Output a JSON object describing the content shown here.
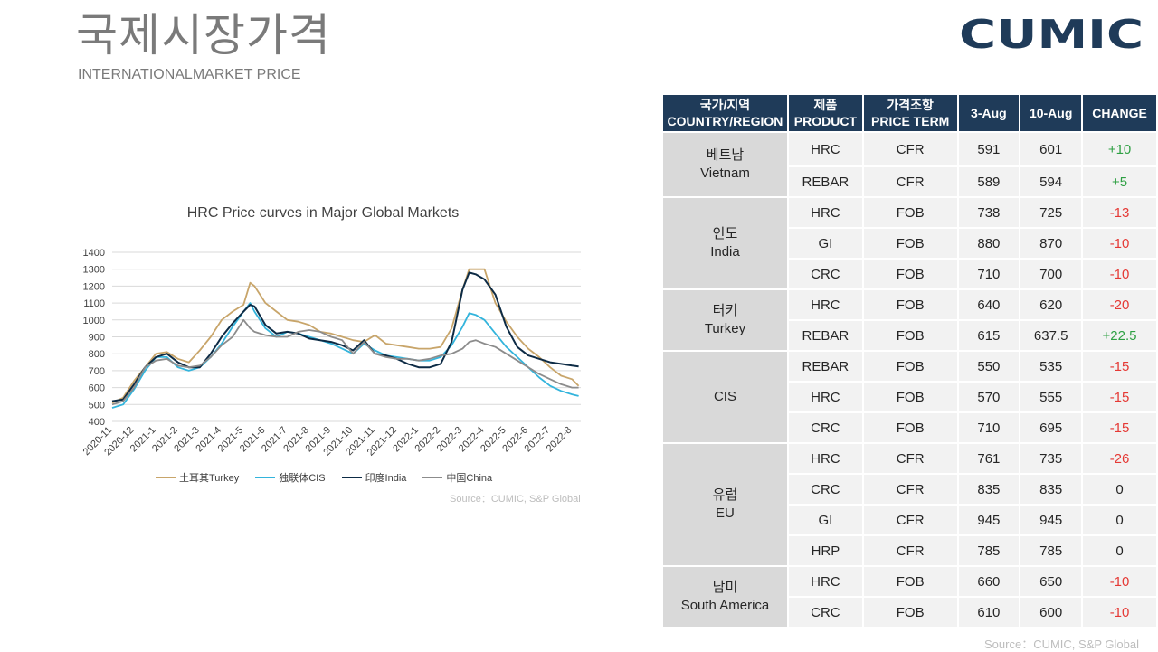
{
  "header": {
    "title_ko": "국제시장가격",
    "title_en": "INTERNATIONALMARKET PRICE",
    "logo_text": "CUMIC",
    "logo_color": "#1f3b59"
  },
  "chart_data": {
    "type": "line",
    "title": "HRC Price curves in Major Global Markets",
    "xlabel": "",
    "ylabel": "",
    "ylim": [
      400,
      1400
    ],
    "yticks": [
      400,
      500,
      600,
      700,
      800,
      900,
      1000,
      1100,
      1200,
      1300,
      1400
    ],
    "grid": true,
    "legend_position": "bottom",
    "categories": [
      "2020-11",
      "2020-12",
      "2021-1",
      "2021-2",
      "2021-3",
      "2021-4",
      "2021-5",
      "2021-6",
      "2021-7",
      "2021-8",
      "2021-9",
      "2021-10",
      "2021-11",
      "2021-12",
      "2022-1",
      "2022-2",
      "2022-3",
      "2022-4",
      "2022-5",
      "2022-6",
      "2022-7",
      "2022-8"
    ],
    "series": [
      {
        "name": "土耳其Turkey",
        "color": "#c8a56a",
        "x": [
          0,
          0.5,
          1,
          1.5,
          2,
          2.5,
          3,
          3.5,
          4,
          4.5,
          5,
          5.5,
          6,
          6.3,
          6.5,
          7,
          7.5,
          8,
          8.5,
          9,
          9.5,
          10,
          10.5,
          11,
          11.5,
          12,
          12.5,
          13,
          13.5,
          14,
          14.5,
          15,
          15.5,
          16,
          16.3,
          16.6,
          17,
          17.5,
          18,
          18.5,
          19,
          19.5,
          20,
          20.5,
          21,
          21.3
        ],
        "values": [
          510,
          540,
          640,
          720,
          800,
          810,
          770,
          750,
          820,
          900,
          1000,
          1050,
          1090,
          1220,
          1200,
          1100,
          1050,
          1000,
          990,
          970,
          930,
          920,
          900,
          880,
          870,
          910,
          860,
          850,
          840,
          830,
          830,
          840,
          950,
          1180,
          1300,
          1300,
          1300,
          1100,
          990,
          900,
          830,
          780,
          720,
          670,
          650,
          610
        ]
      },
      {
        "name": "独联体CIS",
        "color": "#33b4dc",
        "x": [
          0,
          0.5,
          1,
          1.5,
          2,
          2.5,
          3,
          3.5,
          4,
          4.5,
          5,
          5.5,
          6,
          6.3,
          6.5,
          7,
          7.5,
          8,
          8.5,
          9,
          9.5,
          10,
          10.5,
          11,
          11.5,
          12,
          12.5,
          13,
          13.5,
          14,
          14.5,
          15,
          15.5,
          16,
          16.3,
          16.6,
          17,
          17.5,
          18,
          18.5,
          19,
          19.5,
          20,
          20.5,
          21,
          21.3
        ],
        "values": [
          480,
          500,
          590,
          700,
          780,
          780,
          720,
          700,
          720,
          780,
          860,
          960,
          1050,
          1100,
          1050,
          950,
          900,
          930,
          920,
          900,
          880,
          860,
          830,
          800,
          860,
          820,
          790,
          780,
          770,
          760,
          760,
          780,
          850,
          960,
          1040,
          1030,
          1000,
          920,
          840,
          780,
          720,
          660,
          610,
          580,
          560,
          550
        ]
      },
      {
        "name": "印度India",
        "color": "#0d2b45",
        "x": [
          0,
          0.5,
          1,
          1.5,
          2,
          2.5,
          3,
          3.5,
          4,
          4.5,
          5,
          5.5,
          6,
          6.3,
          6.5,
          7,
          7.5,
          8,
          8.5,
          9,
          9.5,
          10,
          10.5,
          11,
          11.5,
          12,
          12.5,
          13,
          13.5,
          14,
          14.5,
          15,
          15.5,
          16,
          16.3,
          16.6,
          17,
          17.5,
          18,
          18.5,
          19,
          19.5,
          20,
          20.5,
          21,
          21.3
        ],
        "values": [
          520,
          530,
          620,
          720,
          780,
          800,
          750,
          720,
          720,
          800,
          900,
          980,
          1050,
          1090,
          1080,
          970,
          920,
          930,
          920,
          890,
          880,
          870,
          850,
          820,
          880,
          800,
          790,
          770,
          740,
          720,
          720,
          740,
          870,
          1180,
          1280,
          1270,
          1240,
          1150,
          960,
          840,
          790,
          770,
          750,
          740,
          730,
          725
        ]
      },
      {
        "name": "中国China",
        "color": "#8c8c8c",
        "x": [
          0,
          0.5,
          1,
          1.5,
          2,
          2.5,
          3,
          3.5,
          4,
          4.5,
          5,
          5.5,
          6,
          6.3,
          6.5,
          7,
          7.5,
          8,
          8.5,
          9,
          9.5,
          10,
          10.5,
          11,
          11.5,
          12,
          12.5,
          13,
          13.5,
          14,
          14.5,
          15,
          15.5,
          16,
          16.3,
          16.6,
          17,
          17.5,
          18,
          18.5,
          19,
          19.5,
          20,
          20.5,
          21,
          21.3
        ],
        "values": [
          500,
          520,
          600,
          720,
          760,
          770,
          730,
          720,
          730,
          780,
          850,
          900,
          1000,
          950,
          930,
          910,
          900,
          900,
          930,
          940,
          930,
          900,
          880,
          800,
          870,
          800,
          780,
          770,
          770,
          760,
          770,
          790,
          800,
          830,
          870,
          880,
          860,
          840,
          800,
          760,
          720,
          680,
          650,
          620,
          600,
          600
        ]
      }
    ]
  },
  "chart_source": "Source：CUMIC, S&P Global",
  "table": {
    "headers": [
      {
        "ko": "국가/지역",
        "en": "COUNTRY/REGION"
      },
      {
        "ko": "제품",
        "en": "PRODUCT"
      },
      {
        "ko": "가격조항",
        "en": "PRICE TERM"
      },
      {
        "ko": "",
        "en": "3-Aug"
      },
      {
        "ko": "",
        "en": "10-Aug"
      },
      {
        "ko": "",
        "en": "CHANGE"
      }
    ],
    "regions": [
      {
        "ko": "베트남",
        "en": "Vietnam",
        "rows": [
          {
            "product": "HRC",
            "term": "CFR",
            "aug3": "591",
            "aug10": "601",
            "change": "+10",
            "sign": "pos"
          },
          {
            "product": "REBAR",
            "term": "CFR",
            "aug3": "589",
            "aug10": "594",
            "change": "+5",
            "sign": "pos"
          }
        ]
      },
      {
        "ko": "인도",
        "en": "India",
        "rows": [
          {
            "product": "HRC",
            "term": "FOB",
            "aug3": "738",
            "aug10": "725",
            "change": "-13",
            "sign": "neg"
          },
          {
            "product": "GI",
            "term": "FOB",
            "aug3": "880",
            "aug10": "870",
            "change": "-10",
            "sign": "neg"
          },
          {
            "product": "CRC",
            "term": "FOB",
            "aug3": "710",
            "aug10": "700",
            "change": "-10",
            "sign": "neg"
          }
        ]
      },
      {
        "ko": "터키",
        "en": "Turkey",
        "rows": [
          {
            "product": "HRC",
            "term": "FOB",
            "aug3": "640",
            "aug10": "620",
            "change": "-20",
            "sign": "neg"
          },
          {
            "product": "REBAR",
            "term": "FOB",
            "aug3": "615",
            "aug10": "637.5",
            "change": "+22.5",
            "sign": "pos"
          }
        ]
      },
      {
        "ko": "",
        "en": "CIS",
        "rows": [
          {
            "product": "REBAR",
            "term": "FOB",
            "aug3": "550",
            "aug10": "535",
            "change": "-15",
            "sign": "neg"
          },
          {
            "product": "HRC",
            "term": "FOB",
            "aug3": "570",
            "aug10": "555",
            "change": "-15",
            "sign": "neg"
          },
          {
            "product": "CRC",
            "term": "FOB",
            "aug3": "710",
            "aug10": "695",
            "change": "-15",
            "sign": "neg"
          }
        ]
      },
      {
        "ko": "유럽",
        "en": "EU",
        "rows": [
          {
            "product": "HRC",
            "term": "CFR",
            "aug3": "761",
            "aug10": "735",
            "change": "-26",
            "sign": "neg"
          },
          {
            "product": "CRC",
            "term": "CFR",
            "aug3": "835",
            "aug10": "835",
            "change": "0",
            "sign": "zero"
          },
          {
            "product": "GI",
            "term": "CFR",
            "aug3": "945",
            "aug10": "945",
            "change": "0",
            "sign": "zero"
          },
          {
            "product": "HRP",
            "term": "CFR",
            "aug3": "785",
            "aug10": "785",
            "change": "0",
            "sign": "zero"
          }
        ]
      },
      {
        "ko": "남미",
        "en": "South America",
        "rows": [
          {
            "product": "HRC",
            "term": "FOB",
            "aug3": "660",
            "aug10": "650",
            "change": "-10",
            "sign": "neg"
          },
          {
            "product": "CRC",
            "term": "FOB",
            "aug3": "610",
            "aug10": "600",
            "change": "-10",
            "sign": "neg"
          }
        ]
      }
    ]
  },
  "table_source": "Source：CUMIC, S&P Global"
}
